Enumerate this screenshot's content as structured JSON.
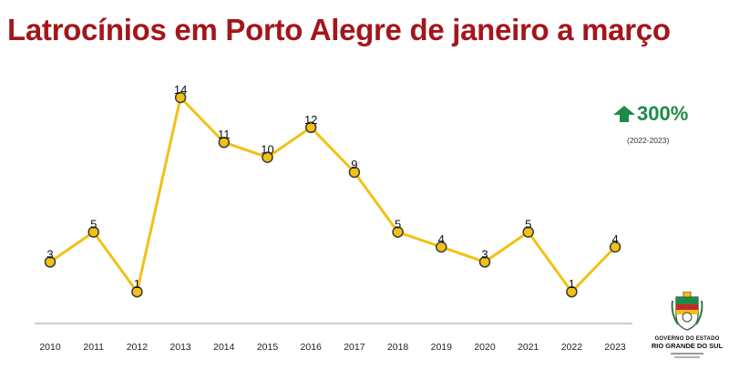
{
  "title": "Latrocínios em Porto Alegre de janeiro a março",
  "colors": {
    "title": "#a3161c",
    "line": "#f2c114",
    "marker_fill": "#f2c114",
    "marker_stroke": "#3a3a3a",
    "axis": "#bdbdbd",
    "up_green": "#1e8a47"
  },
  "change": {
    "icon": "up-arrow-icon",
    "value": "300%",
    "period": "(2022-2023)"
  },
  "logo": {
    "line1": "GOVERNO DO ESTADO",
    "line2": "RIO GRANDE DO SUL"
  },
  "chart_data": {
    "type": "line",
    "title": "Latrocínios em Porto Alegre de janeiro a março",
    "xlabel": "",
    "ylabel": "",
    "categories": [
      "2010",
      "2011",
      "2012",
      "2013",
      "2014",
      "2015",
      "2016",
      "2017",
      "2018",
      "2019",
      "2020",
      "2021",
      "2022",
      "2023"
    ],
    "values": [
      3,
      5,
      1,
      14,
      11,
      10,
      12,
      9,
      5,
      4,
      3,
      5,
      1,
      4
    ],
    "data_labels": [
      "3",
      "5",
      "1",
      "14",
      "11",
      "10",
      "12",
      "9",
      "5",
      "4",
      "3",
      "5",
      "1",
      "4"
    ],
    "ylim": [
      -1,
      14
    ],
    "grid": false,
    "legend": "none"
  }
}
